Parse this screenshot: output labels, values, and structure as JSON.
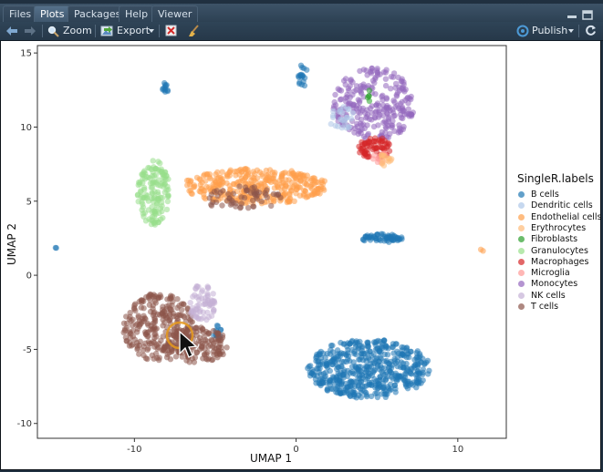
{
  "tabs": [
    {
      "label": "Files",
      "active": false
    },
    {
      "label": "Plots",
      "active": true
    },
    {
      "label": "Packages",
      "active": false
    },
    {
      "label": "Help",
      "active": false
    },
    {
      "label": "Viewer",
      "active": false
    }
  ],
  "toolbar": {
    "zoom_label": "Zoom",
    "export_label": "Export",
    "publish_label": "Publish"
  },
  "colors": {
    "B cells": "#1f77b4",
    "Dendritic cells": "#aec7e8",
    "Endothelial cells": "#ff9f4a",
    "Erythrocytes": "#ffbb78",
    "Fibroblasts": "#2ca02c",
    "Granulocytes": "#98df8a",
    "Macrophages": "#d62728",
    "Microglia": "#ff9896",
    "Monocytes": "#9467bd",
    "NK cells": "#c5b0d5",
    "T cells": "#8c564b"
  },
  "chart_data": {
    "type": "scatter",
    "title": "",
    "xlabel": "UMAP 1",
    "ylabel": "UMAP 2",
    "xlim": [
      -16,
      13
    ],
    "ylim": [
      -11,
      15.5
    ],
    "xticks": [
      -10,
      0,
      10
    ],
    "yticks": [
      -10,
      -5,
      0,
      5,
      10,
      15
    ],
    "grid": false,
    "legend_position": "right",
    "legend_title": "SingleR.labels",
    "legend": [
      "B cells",
      "Dendritic cells",
      "Endothelial cells",
      "Erythrocytes",
      "Fibroblasts",
      "Granulocytes",
      "Macrophages",
      "Microglia",
      "Monocytes",
      "NK cells",
      "T cells"
    ],
    "clusters": [
      {
        "label": "B cells",
        "cx": 4.5,
        "cy": -6.3,
        "rx": 3.8,
        "ry": 2.0,
        "n": 520
      },
      {
        "label": "B cells",
        "cx": 5.3,
        "cy": 2.5,
        "rx": 1.3,
        "ry": 0.3,
        "n": 60
      },
      {
        "label": "B cells",
        "cx": -8.1,
        "cy": 12.6,
        "rx": 0.2,
        "ry": 0.4,
        "n": 12
      },
      {
        "label": "B cells",
        "cx": 0.4,
        "cy": 13.5,
        "rx": 0.3,
        "ry": 0.8,
        "n": 18
      },
      {
        "label": "B cells",
        "cx": -5.0,
        "cy": -3.8,
        "rx": 0.4,
        "ry": 0.6,
        "n": 12
      },
      {
        "label": "B cells",
        "cx": -14.9,
        "cy": 1.9,
        "rx": 0.1,
        "ry": 0.1,
        "n": 2
      },
      {
        "label": "Endothelial cells",
        "cx": -2.5,
        "cy": 6.0,
        "rx": 4.5,
        "ry": 1.2,
        "n": 360
      },
      {
        "label": "Endothelial cells",
        "cx": 11.5,
        "cy": 1.7,
        "rx": 0.1,
        "ry": 0.1,
        "n": 2
      },
      {
        "label": "Granulocytes",
        "cx": -8.8,
        "cy": 5.6,
        "rx": 1.0,
        "ry": 2.2,
        "n": 140
      },
      {
        "label": "Monocytes",
        "cx": 4.8,
        "cy": 11.5,
        "rx": 2.5,
        "ry": 2.5,
        "n": 260
      },
      {
        "label": "Macrophages",
        "cx": 4.9,
        "cy": 8.6,
        "rx": 1.1,
        "ry": 0.7,
        "n": 70
      },
      {
        "label": "Microglia",
        "cx": 5.2,
        "cy": 7.9,
        "rx": 0.5,
        "ry": 0.4,
        "n": 12
      },
      {
        "label": "T cells",
        "cx": -8.5,
        "cy": -3.5,
        "rx": 2.2,
        "ry": 2.3,
        "n": 260
      },
      {
        "label": "T cells",
        "cx": -6.2,
        "cy": -4.7,
        "rx": 2.0,
        "ry": 1.2,
        "n": 160
      },
      {
        "label": "T cells",
        "cx": -3.3,
        "cy": 5.2,
        "rx": 2.5,
        "ry": 0.8,
        "n": 60
      },
      {
        "label": "NK cells",
        "cx": -5.8,
        "cy": -1.8,
        "rx": 0.9,
        "ry": 1.3,
        "n": 70
      },
      {
        "label": "Dendritic cells",
        "cx": 2.8,
        "cy": 10.6,
        "rx": 0.8,
        "ry": 0.8,
        "n": 24
      },
      {
        "label": "Fibroblasts",
        "cx": 4.5,
        "cy": 12.0,
        "rx": 0.1,
        "ry": 0.5,
        "n": 5
      },
      {
        "label": "Erythrocytes",
        "cx": 5.5,
        "cy": 7.8,
        "rx": 0.6,
        "ry": 0.4,
        "n": 14
      }
    ]
  }
}
